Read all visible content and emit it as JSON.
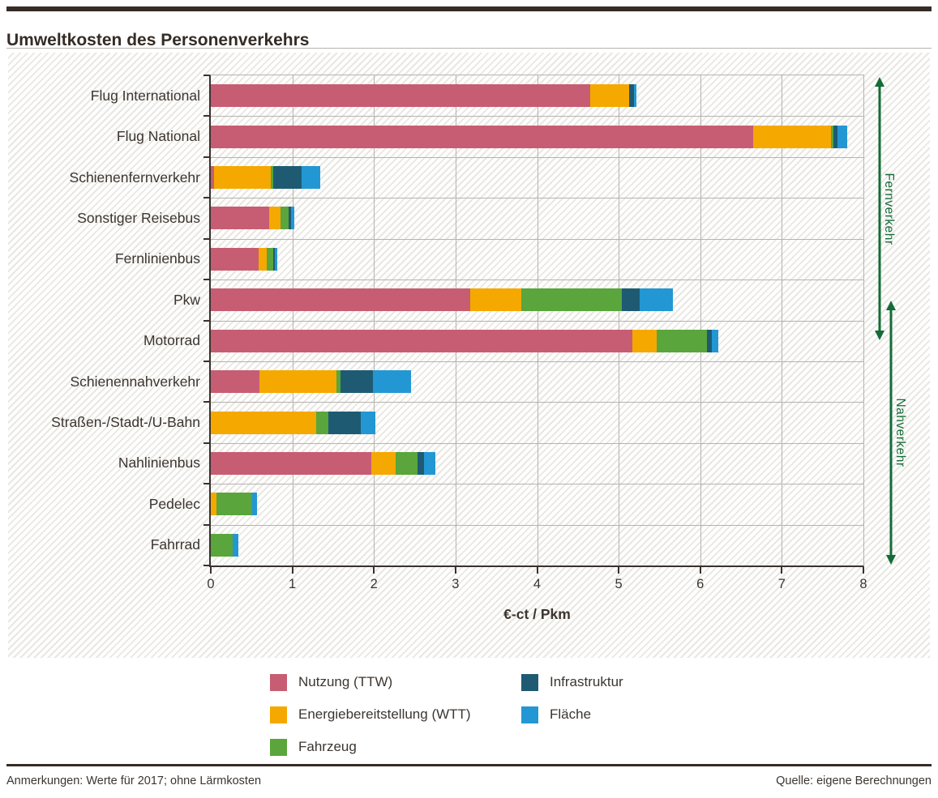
{
  "header": {
    "title": "Umweltkosten des Personenverkehrs"
  },
  "chart_data": {
    "type": "bar",
    "orientation": "horizontal-stacked",
    "title": "Umweltkosten des Personenverkehrs",
    "xlabel": "€-ct / Pkm",
    "xlim": [
      0,
      8
    ],
    "xmax": 8,
    "x_ticks": [
      0,
      1,
      2,
      3,
      4,
      5,
      6,
      7,
      8
    ],
    "grid": true,
    "legend_position": "bottom",
    "categories": [
      "Flug International",
      "Flug National",
      "Schienenfernverkehr",
      "Sonstiger Reisebus",
      "Fernlinienbus",
      "Pkw",
      "Motorrad",
      "Schienennahverkehr",
      "Straßen-/Stadt-/U-Bahn",
      "Nahlinienbus",
      "Pedelec",
      "Fahrrad"
    ],
    "series": [
      {
        "key": "nutzung",
        "name": "Nutzung (TTW)",
        "color": "#c75d72",
        "values": [
          4.65,
          6.65,
          0.04,
          0.72,
          0.59,
          3.18,
          5.17,
          0.6,
          0.0,
          1.97,
          0.0,
          0.0
        ]
      },
      {
        "key": "energiebereitstellung",
        "name": "Energiebereitstellung (WTT)",
        "color": "#f5a800",
        "values": [
          0.48,
          0.95,
          0.7,
          0.13,
          0.1,
          0.63,
          0.3,
          0.94,
          1.29,
          0.3,
          0.07,
          0.0
        ]
      },
      {
        "key": "fahrzeug",
        "name": "Fahrzeug",
        "color": "#5aa53c",
        "values": [
          0.0,
          0.03,
          0.03,
          0.1,
          0.08,
          1.23,
          0.61,
          0.05,
          0.15,
          0.26,
          0.44,
          0.27
        ]
      },
      {
        "key": "infrastruktur",
        "name": "Infrastruktur",
        "color": "#1e5b73",
        "values": [
          0.06,
          0.05,
          0.34,
          0.03,
          0.02,
          0.22,
          0.06,
          0.4,
          0.4,
          0.08,
          0.0,
          0.0
        ]
      },
      {
        "key": "flaeche",
        "name": "Fläche",
        "color": "#2297d3",
        "values": [
          0.03,
          0.12,
          0.23,
          0.04,
          0.03,
          0.4,
          0.08,
          0.46,
          0.18,
          0.14,
          0.06,
          0.07
        ]
      }
    ],
    "totals": [
      5.22,
      7.8,
      1.34,
      1.02,
      0.82,
      5.66,
      6.22,
      2.45,
      2.02,
      2.75,
      0.57,
      0.34
    ]
  },
  "side_labels": {
    "fernverkehr": "Fernverkehr",
    "nahverkehr": "Nahverkehr",
    "arrow_color": "#146c38"
  },
  "legend": {
    "items": [
      {
        "key": "nutzung",
        "label": "Nutzung (TTW)",
        "color": "#c75d72"
      },
      {
        "key": "energiebereitstellung",
        "label": "Energiebereitstellung (WTT)",
        "color": "#f5a800"
      },
      {
        "key": "fahrzeug",
        "label": "Fahrzeug",
        "color": "#5aa53c"
      },
      {
        "key": "infrastruktur",
        "label": "Infrastruktur",
        "color": "#1e5b73"
      },
      {
        "key": "flaeche",
        "label": "Fläche",
        "color": "#2297d3"
      }
    ]
  },
  "footer": {
    "left": "Anmerkungen: Werte für 2017; ohne Lärmkosten",
    "right": "Quelle: eigene Berechnungen"
  }
}
